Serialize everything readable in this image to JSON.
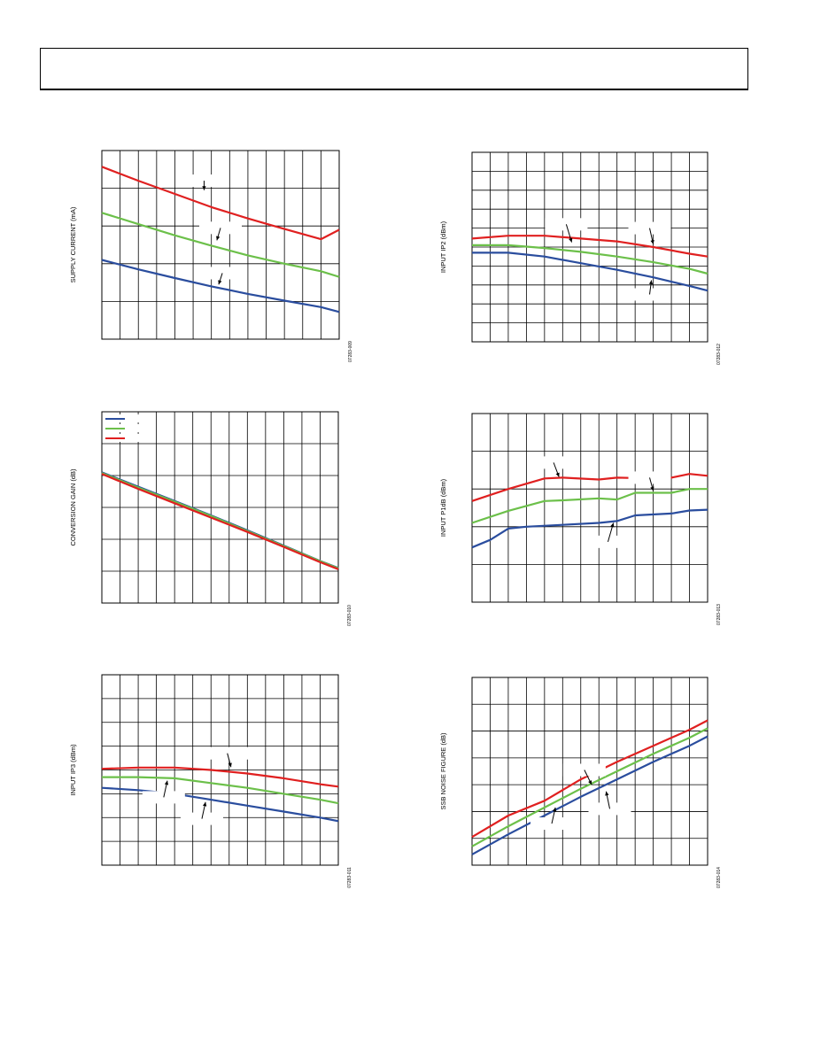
{
  "page": {
    "header_text": ""
  },
  "colors": {
    "red": "#e02020",
    "green": "#6cc04a",
    "blue": "#2a4d9e",
    "grid": "#000000"
  },
  "chart_data": [
    {
      "id": "supply-current",
      "type": "line",
      "ylabel": "SUPPLY CURRENT (mA)",
      "figure_id": "07283-009",
      "xlim": [
        0,
        13
      ],
      "ylim": [
        0,
        5
      ],
      "x_divisions": 13,
      "y_divisions": 5,
      "legend": [],
      "series": [
        {
          "color": "red",
          "x": [
            0,
            2,
            4,
            6,
            8,
            10,
            12,
            13
          ],
          "y": [
            4.57,
            4.2,
            3.85,
            3.5,
            3.2,
            2.92,
            2.65,
            2.9
          ]
        },
        {
          "color": "green",
          "x": [
            0,
            2,
            4,
            6,
            8,
            10,
            12,
            13
          ],
          "y": [
            3.35,
            3.05,
            2.75,
            2.48,
            2.22,
            2.0,
            1.8,
            1.65
          ]
        },
        {
          "color": "blue",
          "x": [
            0,
            2,
            4,
            6,
            8,
            10,
            12,
            13
          ],
          "y": [
            2.1,
            1.85,
            1.62,
            1.4,
            1.2,
            1.02,
            0.85,
            0.72
          ]
        }
      ],
      "annotations": [
        {
          "x": 5.6,
          "y": 4.2,
          "ax": 5.6,
          "ay": 3.95
        },
        {
          "x": 6.5,
          "y": 2.95,
          "ax": 6.3,
          "ay": 2.62
        },
        {
          "x": 6.6,
          "y": 1.75,
          "ax": 6.4,
          "ay": 1.45
        }
      ]
    },
    {
      "id": "input-ip2",
      "type": "line",
      "ylabel": "INPUT IP2 (dBm)",
      "figure_id": "07283-012",
      "xlim": [
        0,
        13
      ],
      "ylim": [
        0,
        10
      ],
      "x_divisions": 13,
      "y_divisions": 10,
      "legend": [],
      "series": [
        {
          "color": "red",
          "x": [
            0,
            2,
            4,
            6,
            8,
            10,
            12,
            13
          ],
          "y": [
            5.45,
            5.6,
            5.6,
            5.45,
            5.3,
            5.0,
            4.65,
            4.5
          ]
        },
        {
          "color": "green",
          "x": [
            0,
            2,
            4,
            6,
            8,
            10,
            12,
            13
          ],
          "y": [
            5.1,
            5.1,
            4.95,
            4.75,
            4.5,
            4.2,
            3.85,
            3.6
          ]
        },
        {
          "color": "blue",
          "x": [
            0,
            2,
            4,
            6,
            8,
            10,
            12,
            13
          ],
          "y": [
            4.7,
            4.7,
            4.5,
            4.15,
            3.8,
            3.4,
            2.95,
            2.7
          ]
        }
      ],
      "annotations": [
        {
          "x": 5.2,
          "y": 6.2,
          "ax": 5.5,
          "ay": 5.25
        },
        {
          "x": 9.8,
          "y": 6.0,
          "ax": 10.0,
          "ay": 5.15
        },
        {
          "x": 9.8,
          "y": 2.5,
          "ax": 9.9,
          "ay": 3.25
        }
      ]
    },
    {
      "id": "conversion-gain",
      "type": "line",
      "ylabel": "CONVERSION GAIN (dB)",
      "figure_id": "07283-010",
      "xlim": [
        0,
        13
      ],
      "ylim": [
        0,
        6
      ],
      "x_divisions": 13,
      "y_divisions": 6,
      "legend": [
        {
          "color": "blue",
          "label": ""
        },
        {
          "color": "green",
          "label": ""
        },
        {
          "color": "red",
          "label": ""
        }
      ],
      "series": [
        {
          "color": "blue",
          "x": [
            0,
            2,
            4,
            6,
            8,
            10,
            12,
            13
          ],
          "y": [
            4.1,
            3.65,
            3.2,
            2.75,
            2.28,
            1.8,
            1.32,
            1.1
          ]
        },
        {
          "color": "green",
          "x": [
            0,
            2,
            4,
            6,
            8,
            10,
            12,
            13
          ],
          "y": [
            4.08,
            3.62,
            3.18,
            2.73,
            2.26,
            1.79,
            1.31,
            1.09
          ]
        },
        {
          "color": "red",
          "x": [
            0,
            2,
            4,
            6,
            8,
            10,
            12,
            13
          ],
          "y": [
            4.05,
            3.58,
            3.13,
            2.68,
            2.23,
            1.76,
            1.28,
            1.06
          ]
        }
      ],
      "annotations": []
    },
    {
      "id": "input-p1db",
      "type": "line",
      "ylabel": "INPUT P1dB (dBm)",
      "figure_id": "07283-013",
      "xlim": [
        0,
        13
      ],
      "ylim": [
        0,
        5
      ],
      "x_divisions": 13,
      "y_divisions": 5,
      "legend": [],
      "series": [
        {
          "color": "red",
          "x": [
            0,
            2,
            4,
            5,
            7,
            8,
            10,
            11,
            12,
            13
          ],
          "y": [
            2.68,
            3.0,
            3.28,
            3.3,
            3.25,
            3.3,
            3.28,
            3.3,
            3.4,
            3.35
          ]
        },
        {
          "color": "green",
          "x": [
            0,
            2,
            4,
            5,
            7,
            8,
            9,
            11,
            12,
            13
          ],
          "y": [
            2.1,
            2.42,
            2.68,
            2.7,
            2.75,
            2.72,
            2.9,
            2.9,
            3.0,
            3.0
          ]
        },
        {
          "color": "blue",
          "x": [
            0,
            1,
            2,
            3,
            5,
            7,
            8,
            9,
            11,
            12,
            13
          ],
          "y": [
            1.45,
            1.65,
            1.95,
            2.0,
            2.05,
            2.1,
            2.15,
            2.3,
            2.35,
            2.43,
            2.45
          ]
        }
      ],
      "annotations": [
        {
          "x": 4.5,
          "y": 3.7,
          "ax": 4.8,
          "ay": 3.32
        },
        {
          "x": 9.8,
          "y": 3.3,
          "ax": 10.0,
          "ay": 2.95
        },
        {
          "x": 7.5,
          "y": 1.6,
          "ax": 7.8,
          "ay": 2.1
        }
      ]
    },
    {
      "id": "input-ip3",
      "type": "line",
      "ylabel": "INPUT IP3 (dBm)",
      "figure_id": "07283-011",
      "xlim": [
        0,
        13
      ],
      "ylim": [
        0,
        8
      ],
      "x_divisions": 13,
      "y_divisions": 8,
      "legend": [],
      "series": [
        {
          "color": "red",
          "x": [
            0,
            2,
            4,
            6,
            8,
            10,
            12,
            13
          ],
          "y": [
            4.05,
            4.1,
            4.1,
            4.0,
            3.85,
            3.65,
            3.4,
            3.3
          ]
        },
        {
          "color": "green",
          "x": [
            0,
            2,
            4,
            6,
            8,
            10,
            12,
            13
          ],
          "y": [
            3.7,
            3.7,
            3.65,
            3.45,
            3.25,
            3.0,
            2.75,
            2.6
          ]
        },
        {
          "color": "blue",
          "x": [
            0,
            2,
            4,
            6,
            8,
            10,
            12,
            13
          ],
          "y": [
            3.25,
            3.15,
            3.0,
            2.75,
            2.5,
            2.25,
            2.0,
            1.85
          ]
        }
      ],
      "annotations": [
        {
          "x": 6.9,
          "y": 4.7,
          "ax": 7.1,
          "ay": 4.12
        },
        {
          "x": 3.4,
          "y": 2.85,
          "ax": 3.6,
          "ay": 3.55
        },
        {
          "x": 5.5,
          "y": 1.95,
          "ax": 5.7,
          "ay": 2.65
        }
      ]
    },
    {
      "id": "ssb-noise-figure",
      "type": "line",
      "ylabel": "SSB NOISE FIGURE (dB)",
      "figure_id": "07283-014",
      "xlim": [
        0,
        13
      ],
      "ylim": [
        0,
        7
      ],
      "x_divisions": 13,
      "y_divisions": 7,
      "legend": [],
      "series": [
        {
          "color": "red",
          "x": [
            0,
            2,
            4,
            6,
            8,
            10,
            12,
            13
          ],
          "y": [
            1.05,
            1.85,
            2.4,
            3.2,
            3.85,
            4.45,
            5.05,
            5.4
          ]
        },
        {
          "color": "green",
          "x": [
            0,
            2,
            4,
            6,
            8,
            10,
            12,
            13
          ],
          "y": [
            0.7,
            1.45,
            2.15,
            2.85,
            3.5,
            4.15,
            4.75,
            5.1
          ]
        },
        {
          "color": "blue",
          "x": [
            0,
            2,
            4,
            6,
            8,
            10,
            12,
            13
          ],
          "y": [
            0.4,
            1.15,
            1.85,
            2.55,
            3.2,
            3.85,
            4.45,
            4.8
          ]
        }
      ],
      "annotations": [
        {
          "x": 6.2,
          "y": 3.55,
          "ax": 6.6,
          "ay": 3.0
        },
        {
          "x": 7.6,
          "y": 2.1,
          "ax": 7.4,
          "ay": 2.75
        },
        {
          "x": 4.4,
          "y": 1.55,
          "ax": 4.6,
          "ay": 2.15
        }
      ]
    }
  ]
}
